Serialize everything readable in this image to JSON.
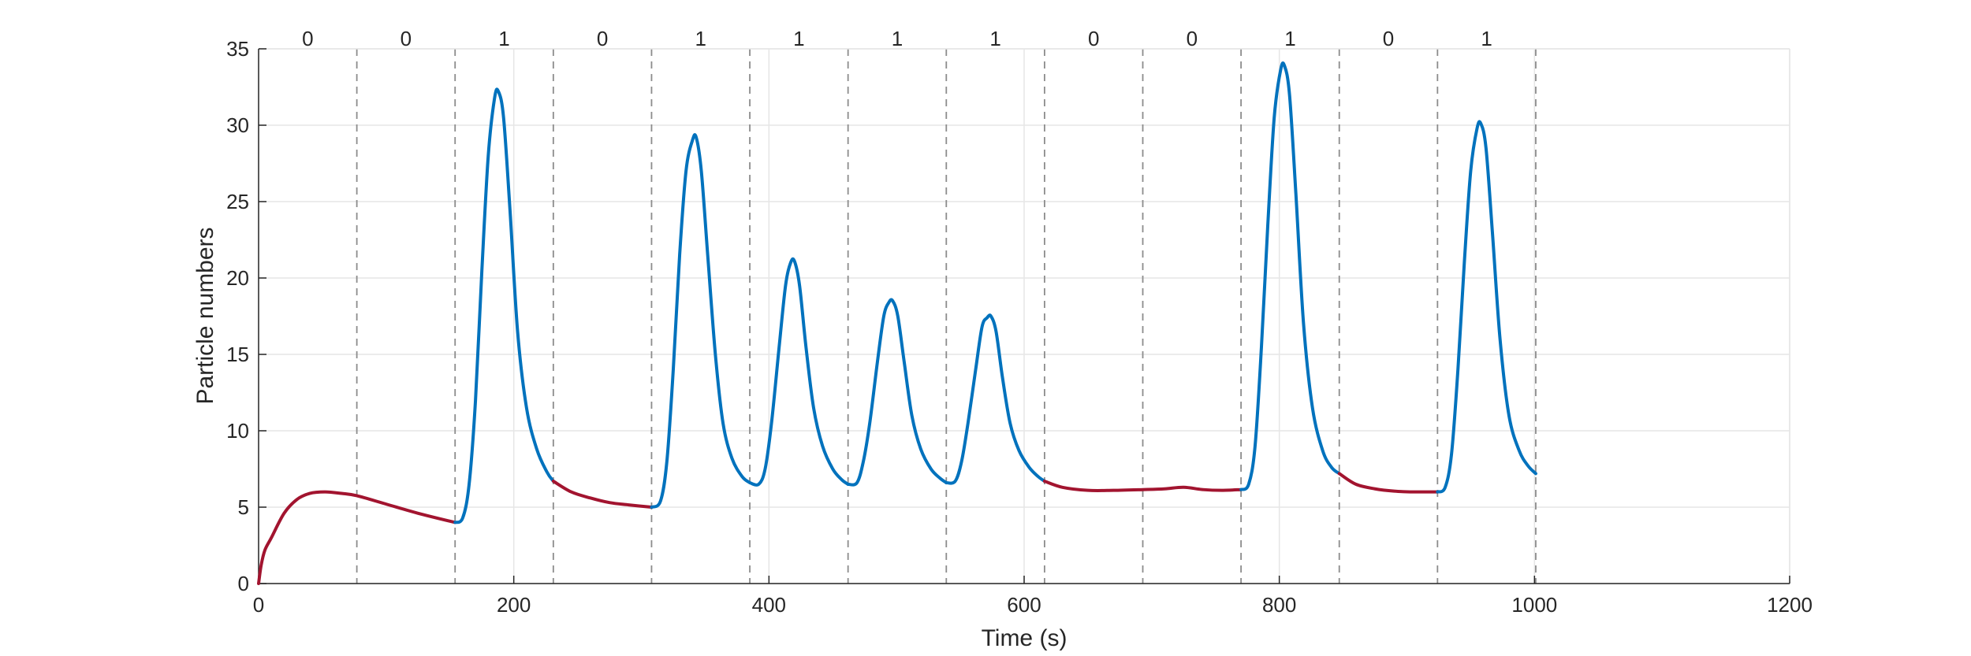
{
  "chart_data": {
    "type": "line",
    "title": "",
    "xlabel": "Time (s)",
    "ylabel": "Particle numbers",
    "xlim": [
      0,
      1200
    ],
    "ylim": [
      0,
      35
    ],
    "xticks": [
      0,
      200,
      400,
      600,
      800,
      1000,
      1200
    ],
    "yticks": [
      0,
      5,
      10,
      15,
      20,
      25,
      30,
      35
    ],
    "grid": true,
    "legend": "none",
    "bit_boundaries": [
      77,
      154,
      231,
      308,
      385,
      462,
      539,
      616,
      693,
      770,
      847,
      924,
      1001
    ],
    "bit_labels": [
      "0",
      "0",
      "1",
      "0",
      "1",
      "1",
      "1",
      "1",
      "0",
      "0",
      "1",
      "0",
      "1"
    ],
    "colors": {
      "low": "#A2142F",
      "high": "#0072BD",
      "grid": "#e6e6e6",
      "divider": "#8c8c8c",
      "axis": "#262626"
    },
    "series": [
      {
        "state": "0",
        "color": "#A2142F",
        "x": [
          0,
          2,
          5,
          10,
          20,
          30,
          40,
          52,
          65,
          77,
          100,
          125,
          154
        ],
        "y": [
          0,
          1.2,
          2.2,
          3.0,
          4.6,
          5.5,
          5.9,
          6.0,
          5.9,
          5.75,
          5.2,
          4.6,
          4.0
        ]
      },
      {
        "state": "1",
        "color": "#0072BD",
        "x": [
          154,
          160,
          165,
          170,
          175,
          180,
          185,
          188,
          192,
          197,
          203,
          210,
          218,
          226,
          231
        ],
        "y": [
          4.0,
          4.3,
          6.5,
          12.0,
          20.5,
          28.0,
          31.8,
          32.2,
          30.5,
          24.5,
          16.5,
          11.5,
          8.8,
          7.3,
          6.7
        ]
      },
      {
        "state": "0",
        "color": "#A2142F",
        "x": [
          231,
          245,
          260,
          275,
          290,
          308
        ],
        "y": [
          6.7,
          6.0,
          5.6,
          5.3,
          5.15,
          5.0
        ]
      },
      {
        "state": "1",
        "color": "#0072BD",
        "x": [
          308,
          315,
          320,
          325,
          330,
          335,
          340,
          343,
          347,
          352,
          358,
          364,
          371,
          379,
          385
        ],
        "y": [
          5.0,
          5.4,
          8.0,
          14.0,
          21.5,
          27.0,
          29.0,
          29.2,
          27.0,
          21.5,
          15.0,
          10.5,
          8.2,
          7.0,
          6.6
        ]
      },
      {
        "state": "1",
        "color": "#0072BD",
        "x": [
          385,
          392,
          397,
          402,
          408,
          413,
          417,
          420,
          424,
          429,
          435,
          442,
          450,
          457,
          462
        ],
        "y": [
          6.6,
          6.5,
          7.5,
          10.5,
          15.5,
          19.5,
          21.0,
          21.1,
          19.5,
          15.5,
          11.5,
          9.0,
          7.5,
          6.8,
          6.5
        ]
      },
      {
        "state": "1",
        "color": "#0072BD",
        "x": [
          462,
          469,
          474,
          479,
          485,
          490,
          494,
          497,
          501,
          506,
          512,
          519,
          527,
          534,
          539
        ],
        "y": [
          6.5,
          6.6,
          8.0,
          10.5,
          14.5,
          17.5,
          18.4,
          18.5,
          17.5,
          14.5,
          11.0,
          8.8,
          7.5,
          6.9,
          6.6
        ]
      },
      {
        "state": "1",
        "color": "#0072BD",
        "x": [
          539,
          546,
          551,
          556,
          562,
          567,
          571,
          574,
          578,
          583,
          589,
          596,
          604,
          611,
          616
        ],
        "y": [
          6.6,
          6.7,
          8.0,
          10.5,
          14.0,
          16.8,
          17.4,
          17.5,
          16.5,
          13.5,
          10.5,
          8.7,
          7.6,
          7.0,
          6.7
        ]
      },
      {
        "state": "0",
        "color": "#A2142F",
        "x": [
          616,
          630,
          650,
          670,
          693,
          710,
          725,
          740,
          755,
          770
        ],
        "y": [
          6.7,
          6.3,
          6.1,
          6.1,
          6.15,
          6.2,
          6.3,
          6.15,
          6.1,
          6.15
        ]
      },
      {
        "state": "1",
        "color": "#0072BD",
        "x": [
          770,
          776,
          781,
          786,
          791,
          796,
          801,
          804,
          808,
          813,
          819,
          826,
          834,
          841,
          847
        ],
        "y": [
          6.15,
          6.5,
          9.0,
          15.5,
          23.5,
          30.5,
          33.6,
          33.9,
          32.0,
          25.5,
          17.0,
          11.5,
          8.7,
          7.6,
          7.2
        ]
      },
      {
        "state": "0",
        "color": "#A2142F",
        "x": [
          847,
          860,
          875,
          890,
          905,
          924
        ],
        "y": [
          7.2,
          6.5,
          6.2,
          6.05,
          6.0,
          6.0
        ]
      },
      {
        "state": "1",
        "color": "#0072BD",
        "x": [
          924,
          930,
          935,
          940,
          945,
          950,
          955,
          958,
          962,
          967,
          973,
          980,
          988,
          995,
          1001
        ],
        "y": [
          6.0,
          6.3,
          8.5,
          14.0,
          21.0,
          27.0,
          29.8,
          30.1,
          28.5,
          23.0,
          16.0,
          11.0,
          8.7,
          7.7,
          7.2
        ]
      }
    ]
  }
}
